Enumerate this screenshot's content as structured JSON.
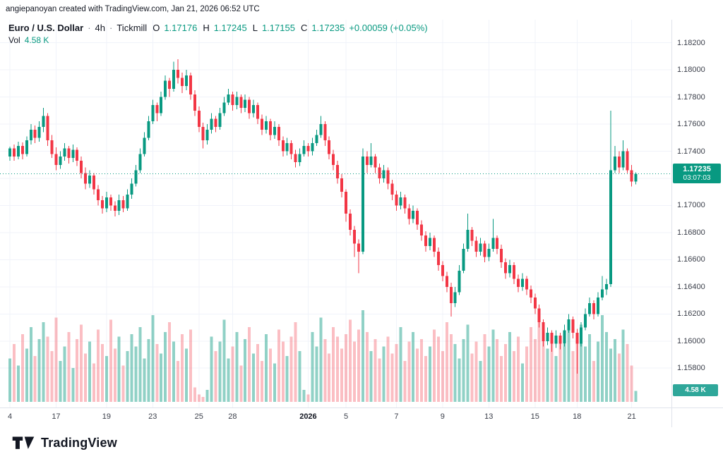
{
  "meta": {
    "attribution": "angiepanoyan created with TradingView.com, Jan 21, 2026 06:52 UTC"
  },
  "header": {
    "symbol": "Euro / U.S. Dollar",
    "sep": "·",
    "interval": "4h",
    "broker": "Tickmill",
    "ohlc": {
      "o_label": "O",
      "o": "1.17176",
      "h_label": "H",
      "h": "1.17245",
      "l_label": "L",
      "l": "1.17155",
      "c_label": "C",
      "c": "1.17235",
      "change": "+0.00059 (+0.05%)"
    },
    "vol_label": "Vol",
    "vol_value": "4.58 K"
  },
  "price_scale": {
    "labels": [
      "1.18200",
      "1.18000",
      "1.17800",
      "1.17600",
      "1.17400",
      "1.17000",
      "1.16800",
      "1.16600",
      "1.16400",
      "1.16200",
      "1.16000",
      "1.15800"
    ],
    "last_price_badge": {
      "price": "1.17235",
      "countdown": "03:07:03"
    },
    "volume_badge": "4.58 K"
  },
  "logo": {
    "text": "TradingView"
  },
  "colors": {
    "up": "#089981",
    "down": "#f23645",
    "volume_up": "rgba(8,153,129,0.45)",
    "volume_down": "rgba(242,54,69,0.32)",
    "grid": "#f0f3fa",
    "border": "#e0e3eb",
    "accent": "#089981"
  },
  "chart_data": {
    "type": "candlestick",
    "title": "Euro / U.S. Dollar · 4h · Tickmill",
    "interval": "4h",
    "ylim": [
      1.1551,
      1.1837
    ],
    "grid_prices": [
      1.182,
      1.18,
      1.178,
      1.176,
      1.174,
      1.172,
      1.17,
      1.168,
      1.166,
      1.164,
      1.162,
      1.16,
      1.158
    ],
    "time_labels": [
      {
        "label": "4",
        "i": 0
      },
      {
        "label": "17",
        "i": 11
      },
      {
        "label": "19",
        "i": 23
      },
      {
        "label": "23",
        "i": 34
      },
      {
        "label": "25",
        "i": 45
      },
      {
        "label": "28",
        "i": 53
      },
      {
        "label": "2026",
        "i": 71,
        "major": true
      },
      {
        "label": "5",
        "i": 80
      },
      {
        "label": "7",
        "i": 92
      },
      {
        "label": "9",
        "i": 103
      },
      {
        "label": "13",
        "i": 114
      },
      {
        "label": "15",
        "i": 125
      },
      {
        "label": "18",
        "i": 135
      },
      {
        "label": "21",
        "i": 148
      }
    ],
    "candles": [
      [
        1.1736,
        1.17435,
        1.1733,
        1.1742
      ],
      [
        1.1742,
        1.1745,
        1.1733,
        1.1736
      ],
      [
        1.1736,
        1.1747,
        1.1734,
        1.1744
      ],
      [
        1.1744,
        1.17465,
        1.1734,
        1.1738
      ],
      [
        1.1738,
        1.1751,
        1.1736,
        1.1748
      ],
      [
        1.1748,
        1.176,
        1.1745,
        1.1756
      ],
      [
        1.1756,
        1.1759,
        1.1746,
        1.175
      ],
      [
        1.175,
        1.1762,
        1.1747,
        1.1758
      ],
      [
        1.1758,
        1.1772,
        1.1754,
        1.1766
      ],
      [
        1.1766,
        1.1768,
        1.1744,
        1.1748
      ],
      [
        1.1748,
        1.1752,
        1.1735,
        1.1738
      ],
      [
        1.1738,
        1.1743,
        1.1726,
        1.173
      ],
      [
        1.173,
        1.174,
        1.1727,
        1.1736
      ],
      [
        1.1736,
        1.1746,
        1.1733,
        1.1742
      ],
      [
        1.1742,
        1.1744,
        1.1731,
        1.1735
      ],
      [
        1.1735,
        1.1745,
        1.1732,
        1.1741
      ],
      [
        1.1741,
        1.1743,
        1.1729,
        1.1733
      ],
      [
        1.1733,
        1.1736,
        1.172,
        1.1724
      ],
      [
        1.1724,
        1.1728,
        1.1712,
        1.1716
      ],
      [
        1.1716,
        1.1726,
        1.1713,
        1.1722
      ],
      [
        1.1722,
        1.1724,
        1.1708,
        1.1712
      ],
      [
        1.1712,
        1.1715,
        1.17,
        1.1704
      ],
      [
        1.1704,
        1.1707,
        1.1694,
        1.1698
      ],
      [
        1.1698,
        1.171,
        1.1695,
        1.1706
      ],
      [
        1.1706,
        1.1708,
        1.1696,
        1.17
      ],
      [
        1.17,
        1.1703,
        1.1692,
        1.1696
      ],
      [
        1.1696,
        1.1708,
        1.1693,
        1.1704
      ],
      [
        1.1704,
        1.1707,
        1.1695,
        1.1698
      ],
      [
        1.1698,
        1.1712,
        1.1696,
        1.1708
      ],
      [
        1.1708,
        1.172,
        1.1705,
        1.1716
      ],
      [
        1.1716,
        1.173,
        1.1714,
        1.1726
      ],
      [
        1.1726,
        1.1742,
        1.1724,
        1.1738
      ],
      [
        1.1738,
        1.1754,
        1.1736,
        1.175
      ],
      [
        1.175,
        1.1766,
        1.1748,
        1.1762
      ],
      [
        1.1762,
        1.1778,
        1.176,
        1.1774
      ],
      [
        1.1774,
        1.1776,
        1.1762,
        1.1768
      ],
      [
        1.1768,
        1.1784,
        1.1766,
        1.178
      ],
      [
        1.178,
        1.1796,
        1.1778,
        1.1792
      ],
      [
        1.1792,
        1.1794,
        1.178,
        1.1786
      ],
      [
        1.1786,
        1.1806,
        1.1784,
        1.18
      ],
      [
        1.18,
        1.1808,
        1.179,
        1.1794
      ],
      [
        1.1794,
        1.1798,
        1.1783,
        1.1788
      ],
      [
        1.1788,
        1.18,
        1.1785,
        1.1796
      ],
      [
        1.1796,
        1.1798,
        1.1778,
        1.1782
      ],
      [
        1.1782,
        1.1785,
        1.1766,
        1.177
      ],
      [
        1.177,
        1.1773,
        1.1754,
        1.1758
      ],
      [
        1.1758,
        1.1761,
        1.1742,
        1.1748
      ],
      [
        1.1748,
        1.176,
        1.1745,
        1.1756
      ],
      [
        1.1756,
        1.1768,
        1.1753,
        1.1764
      ],
      [
        1.1764,
        1.1766,
        1.1754,
        1.1758
      ],
      [
        1.1758,
        1.1772,
        1.1756,
        1.1768
      ],
      [
        1.1768,
        1.178,
        1.1766,
        1.1776
      ],
      [
        1.1776,
        1.1786,
        1.1774,
        1.1782
      ],
      [
        1.1782,
        1.1784,
        1.177,
        1.1774
      ],
      [
        1.1774,
        1.1784,
        1.1771,
        1.178
      ],
      [
        1.178,
        1.1782,
        1.1768,
        1.1772
      ],
      [
        1.1772,
        1.1782,
        1.1769,
        1.1778
      ],
      [
        1.1778,
        1.178,
        1.1764,
        1.1768
      ],
      [
        1.1768,
        1.1778,
        1.1765,
        1.1774
      ],
      [
        1.1774,
        1.1776,
        1.176,
        1.1764
      ],
      [
        1.1764,
        1.1767,
        1.1752,
        1.1756
      ],
      [
        1.1756,
        1.1766,
        1.1753,
        1.1762
      ],
      [
        1.1762,
        1.1764,
        1.1748,
        1.1752
      ],
      [
        1.1752,
        1.1762,
        1.1749,
        1.1758
      ],
      [
        1.1758,
        1.176,
        1.1744,
        1.1748
      ],
      [
        1.1748,
        1.1751,
        1.1736,
        1.174
      ],
      [
        1.174,
        1.175,
        1.1737,
        1.1746
      ],
      [
        1.1746,
        1.1748,
        1.1734,
        1.1738
      ],
      [
        1.1738,
        1.1741,
        1.1728,
        1.1732
      ],
      [
        1.1732,
        1.1742,
        1.1729,
        1.1738
      ],
      [
        1.1738,
        1.1748,
        1.1736,
        1.1744
      ],
      [
        1.1744,
        1.1746,
        1.1736,
        1.174
      ],
      [
        1.174,
        1.175,
        1.1737,
        1.1746
      ],
      [
        1.1746,
        1.1756,
        1.1744,
        1.1752
      ],
      [
        1.1752,
        1.1766,
        1.175,
        1.176
      ],
      [
        1.176,
        1.1762,
        1.1744,
        1.1748
      ],
      [
        1.1748,
        1.1751,
        1.1734,
        1.1738
      ],
      [
        1.1738,
        1.1741,
        1.1726,
        1.173
      ],
      [
        1.173,
        1.1733,
        1.1716,
        1.172
      ],
      [
        1.172,
        1.1723,
        1.1706,
        1.171
      ],
      [
        1.171,
        1.1712,
        1.1688,
        1.1694
      ],
      [
        1.1694,
        1.1697,
        1.1678,
        1.1682
      ],
      [
        1.1682,
        1.1685,
        1.1662,
        1.1672
      ],
      [
        1.1672,
        1.1675,
        1.165,
        1.1666
      ],
      [
        1.1666,
        1.1742,
        1.1664,
        1.1736
      ],
      [
        1.1736,
        1.174,
        1.1724,
        1.173
      ],
      [
        1.173,
        1.1746,
        1.1728,
        1.1736
      ],
      [
        1.1736,
        1.1738,
        1.1724,
        1.1728
      ],
      [
        1.1728,
        1.1731,
        1.1716,
        1.172
      ],
      [
        1.172,
        1.173,
        1.1717,
        1.1726
      ],
      [
        1.1726,
        1.1728,
        1.1712,
        1.1716
      ],
      [
        1.1716,
        1.1719,
        1.1704,
        1.1708
      ],
      [
        1.1708,
        1.1711,
        1.1696,
        1.17
      ],
      [
        1.17,
        1.171,
        1.1697,
        1.1706
      ],
      [
        1.1706,
        1.1708,
        1.1694,
        1.1698
      ],
      [
        1.1698,
        1.1701,
        1.1686,
        1.169
      ],
      [
        1.169,
        1.17,
        1.1687,
        1.1696
      ],
      [
        1.1696,
        1.1698,
        1.1682,
        1.1686
      ],
      [
        1.1686,
        1.1689,
        1.1674,
        1.1678
      ],
      [
        1.1678,
        1.1681,
        1.1666,
        1.167
      ],
      [
        1.167,
        1.168,
        1.1667,
        1.1676
      ],
      [
        1.1676,
        1.1678,
        1.1662,
        1.1666
      ],
      [
        1.1666,
        1.1669,
        1.1652,
        1.1656
      ],
      [
        1.1656,
        1.1659,
        1.1644,
        1.1648
      ],
      [
        1.1648,
        1.1651,
        1.1636,
        1.164
      ],
      [
        1.164,
        1.1643,
        1.1618,
        1.1628
      ],
      [
        1.1628,
        1.164,
        1.1625,
        1.1636
      ],
      [
        1.1636,
        1.1656,
        1.1634,
        1.1652
      ],
      [
        1.1652,
        1.1672,
        1.165,
        1.1668
      ],
      [
        1.1668,
        1.1694,
        1.1666,
        1.1682
      ],
      [
        1.1682,
        1.1684,
        1.167,
        1.1674
      ],
      [
        1.1674,
        1.1677,
        1.1662,
        1.1666
      ],
      [
        1.1666,
        1.1676,
        1.1663,
        1.1672
      ],
      [
        1.1672,
        1.1674,
        1.1658,
        1.1662
      ],
      [
        1.1662,
        1.1672,
        1.1659,
        1.1668
      ],
      [
        1.1668,
        1.169,
        1.1666,
        1.1676
      ],
      [
        1.1676,
        1.1678,
        1.1664,
        1.1668
      ],
      [
        1.1668,
        1.1671,
        1.1654,
        1.1658
      ],
      [
        1.1658,
        1.1661,
        1.1646,
        1.165
      ],
      [
        1.165,
        1.166,
        1.1647,
        1.1656
      ],
      [
        1.1656,
        1.1658,
        1.1642,
        1.1646
      ],
      [
        1.1646,
        1.1649,
        1.1636,
        1.164
      ],
      [
        1.164,
        1.165,
        1.1637,
        1.1646
      ],
      [
        1.1646,
        1.1648,
        1.1634,
        1.1638
      ],
      [
        1.1638,
        1.1641,
        1.1628,
        1.1632
      ],
      [
        1.1632,
        1.1635,
        1.162,
        1.1624
      ],
      [
        1.1624,
        1.1627,
        1.161,
        1.1614
      ],
      [
        1.1614,
        1.1616,
        1.1596,
        1.16
      ],
      [
        1.16,
        1.161,
        1.1597,
        1.1606
      ],
      [
        1.1606,
        1.1608,
        1.1592,
        1.1598
      ],
      [
        1.1598,
        1.1608,
        1.1595,
        1.1604
      ],
      [
        1.1604,
        1.1606,
        1.1594,
        1.1598
      ],
      [
        1.1598,
        1.1612,
        1.1596,
        1.1608
      ],
      [
        1.1608,
        1.162,
        1.1606,
        1.1616
      ],
      [
        1.1616,
        1.1618,
        1.1602,
        1.1606
      ],
      [
        1.1606,
        1.1609,
        1.1576,
        1.1598
      ],
      [
        1.1598,
        1.1614,
        1.1596,
        1.161
      ],
      [
        1.161,
        1.1624,
        1.1608,
        1.162
      ],
      [
        1.162,
        1.1632,
        1.1618,
        1.1628
      ],
      [
        1.1628,
        1.163,
        1.1616,
        1.162
      ],
      [
        1.162,
        1.1636,
        1.1618,
        1.1632
      ],
      [
        1.1632,
        1.1648,
        1.163,
        1.1638
      ],
      [
        1.1638,
        1.1646,
        1.1634,
        1.1642
      ],
      [
        1.1642,
        1.177,
        1.164,
        1.1726
      ],
      [
        1.1726,
        1.1744,
        1.1724,
        1.1736
      ],
      [
        1.1736,
        1.174,
        1.1724,
        1.1728
      ],
      [
        1.1728,
        1.1748,
        1.1726,
        1.174
      ],
      [
        1.174,
        1.1742,
        1.1724,
        1.1726
      ],
      [
        1.1726,
        1.173,
        1.1714,
        1.17176
      ],
      [
        1.17176,
        1.17245,
        1.17155,
        1.17235
      ]
    ],
    "volumes": [
      18,
      24,
      15,
      28,
      22,
      31,
      19,
      26,
      33,
      27,
      21,
      35,
      17,
      23,
      29,
      14,
      26,
      32,
      20,
      25,
      16,
      30,
      24,
      19,
      34,
      22,
      27,
      15,
      21,
      28,
      23,
      31,
      18,
      26,
      36,
      24,
      20,
      29,
      33,
      25,
      17,
      28,
      22,
      30,
      6,
      3,
      2,
      5,
      27,
      21,
      25,
      34,
      18,
      23,
      29,
      15,
      26,
      31,
      20,
      24,
      17,
      28,
      22,
      16,
      30,
      25,
      19,
      27,
      33,
      21,
      5,
      3,
      29,
      23,
      35,
      26,
      20,
      31,
      27,
      22,
      28,
      34,
      25,
      30,
      38,
      29,
      21,
      26,
      18,
      23,
      27,
      20,
      24,
      31,
      17,
      25,
      29,
      22,
      26,
      19,
      23,
      30,
      27,
      21,
      33,
      28,
      24,
      18,
      26,
      32,
      20,
      25,
      17,
      28,
      23,
      30,
      26,
      19,
      24,
      29,
      21,
      27,
      16,
      23,
      31,
      26,
      35,
      28,
      22,
      25,
      19,
      27,
      24,
      30,
      21,
      26,
      32,
      23,
      28,
      17,
      25,
      36,
      29,
      22,
      26,
      20,
      30,
      24,
      15,
      4.58
    ],
    "last_close": 1.17235
  }
}
